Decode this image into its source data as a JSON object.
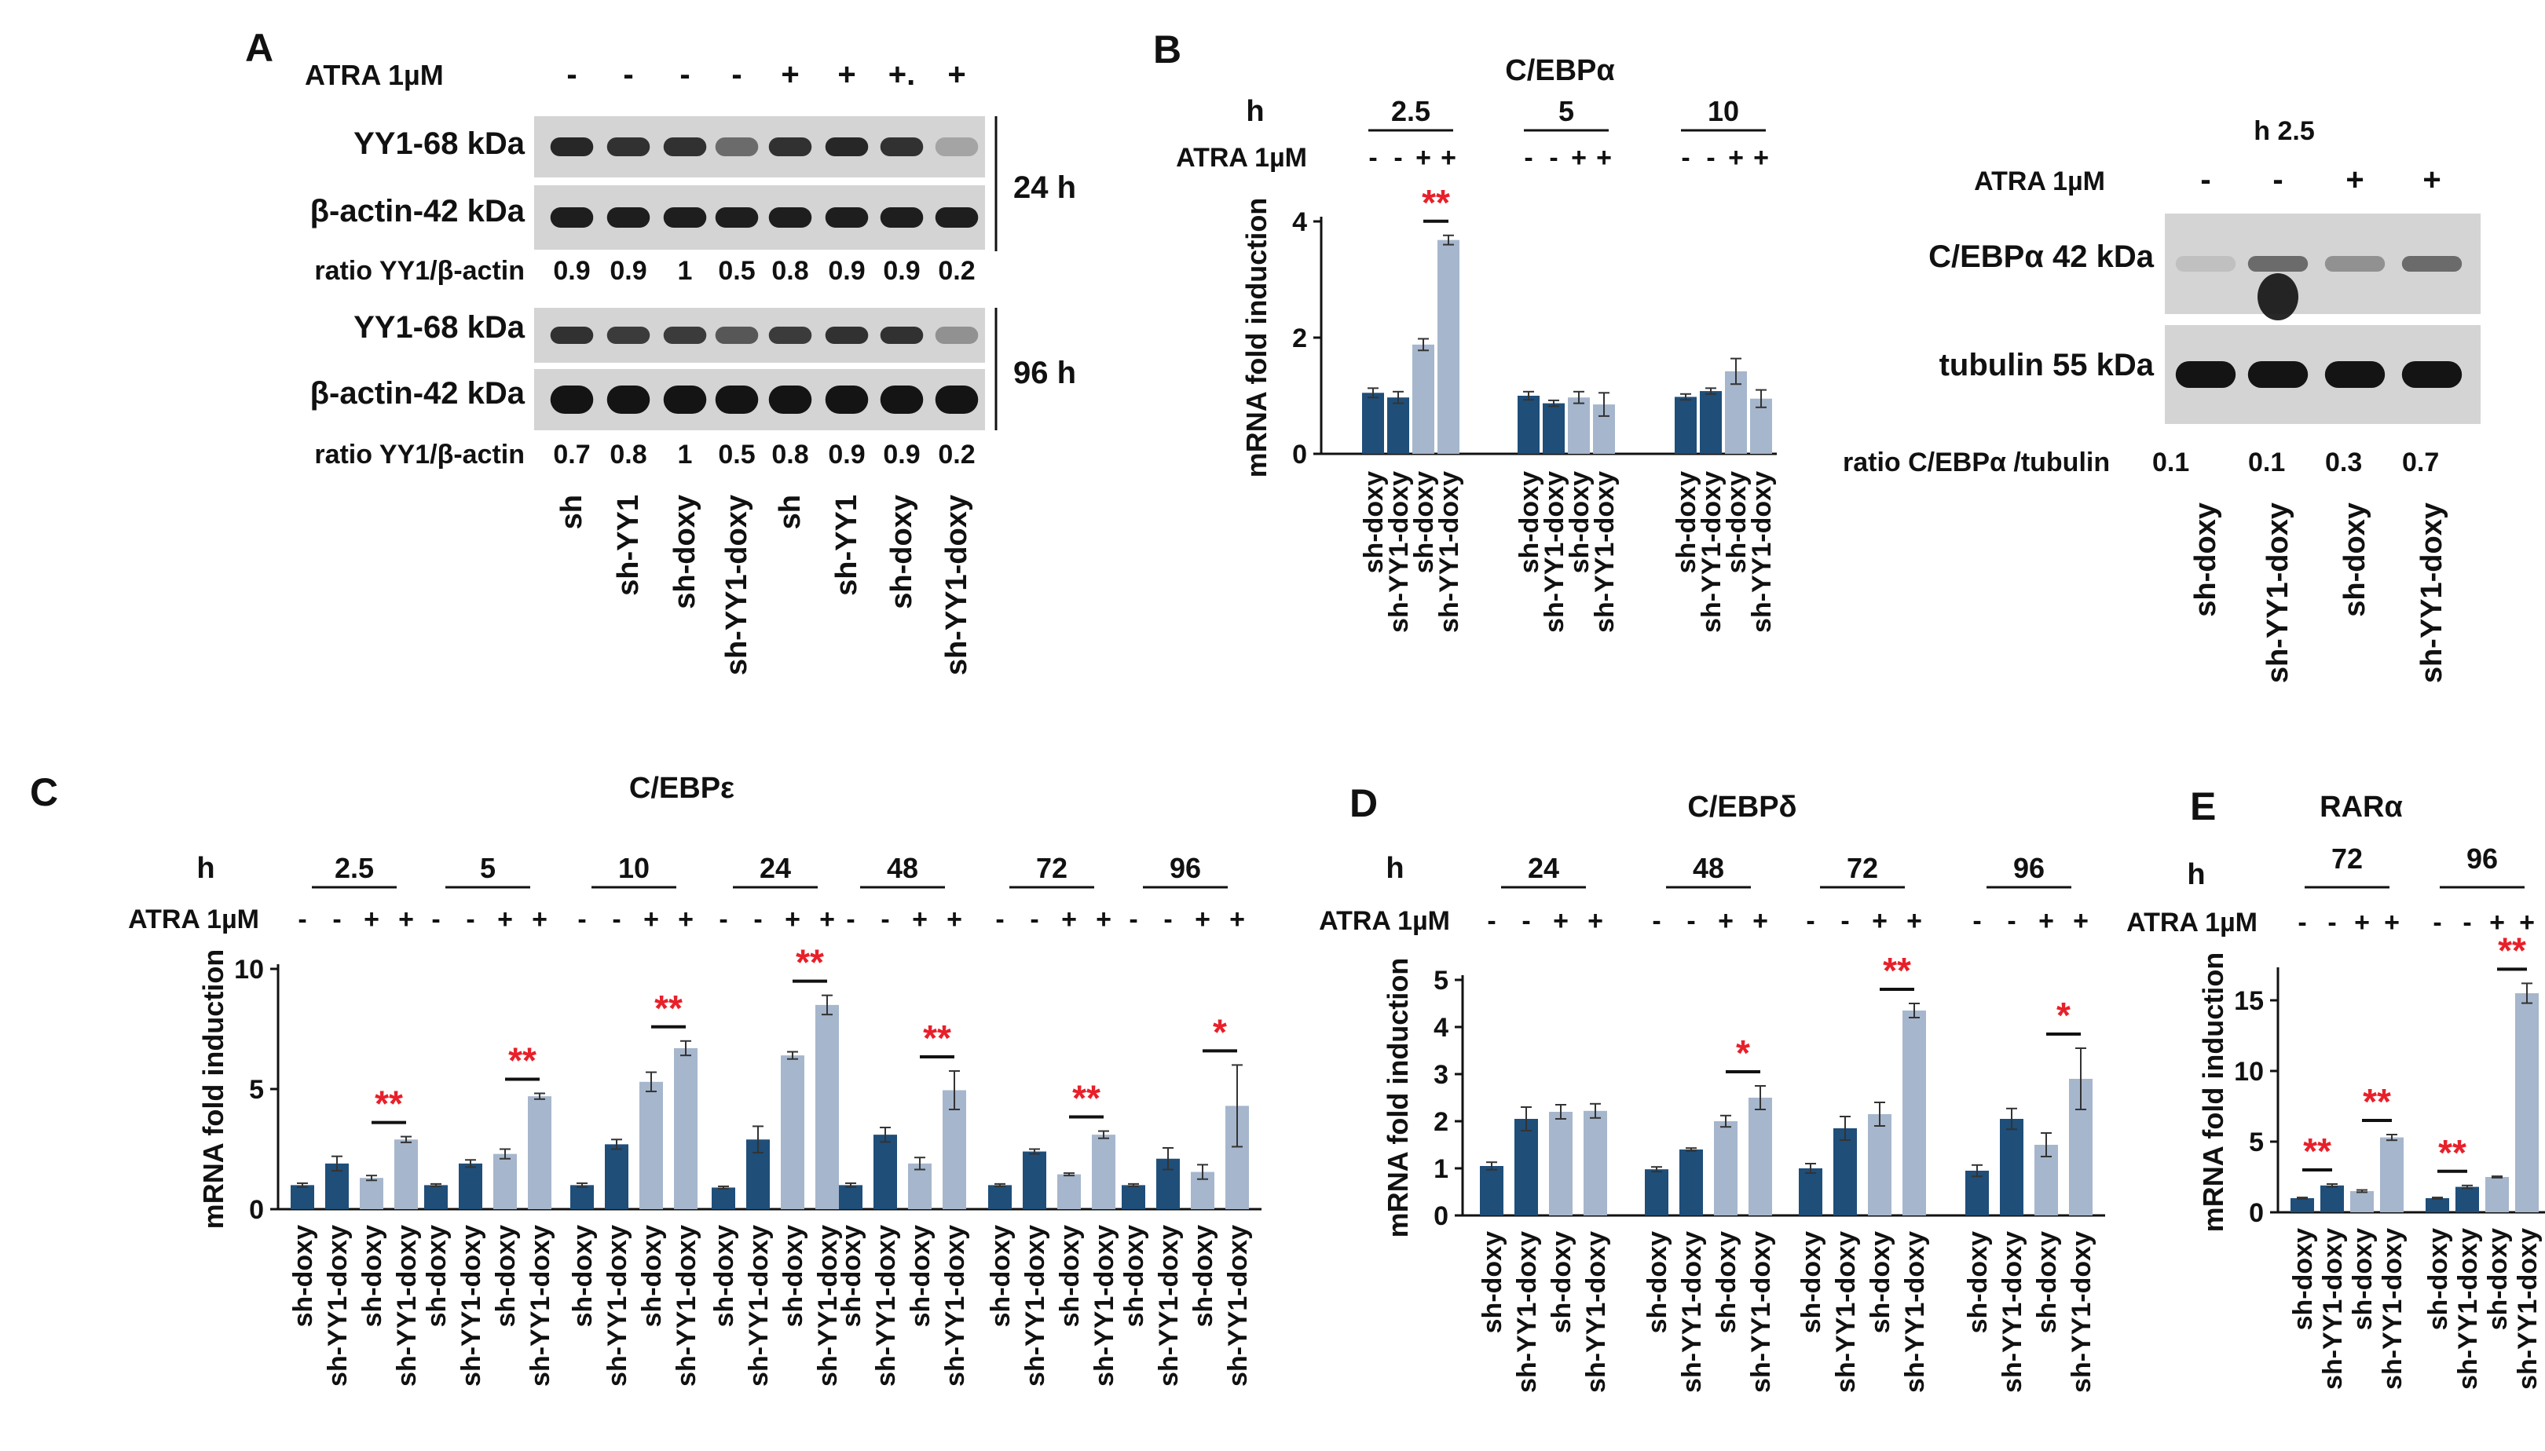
{
  "panels": {
    "A": {
      "letter": "A",
      "atra_label": "ATRA 1µM",
      "atra_signs": [
        "-",
        "-",
        "-",
        "-",
        "+",
        "+",
        "+.",
        "+"
      ],
      "blot_24h": {
        "row1": "YY1-68 kDa",
        "row2": "β-actin-42 kDa",
        "time": "24 h",
        "ratio_label": "ratio YY1/β-actin",
        "ratios": [
          "0.9",
          "0.9",
          "1",
          "0.5",
          "0.8",
          "0.9",
          "0.9",
          "0.2"
        ]
      },
      "blot_96h": {
        "row1": "YY1-68 kDa",
        "row2": "β-actin-42 kDa",
        "time": "96 h",
        "ratio_label": "ratio YY1/β-actin",
        "ratios": [
          "0.7",
          "0.8",
          "1",
          "0.5",
          "0.8",
          "0.9",
          "0.9",
          "0.2"
        ]
      },
      "lanes": [
        "sh",
        "sh-YY1",
        "sh-doxy",
        "sh-YY1-doxy",
        "sh",
        "sh-YY1",
        "sh-doxy",
        "sh-YY1-doxy"
      ]
    },
    "B_blot": {
      "time": "h 2.5",
      "atra_label": "ATRA 1µM",
      "atra_signs": [
        "-",
        "-",
        "+",
        "+"
      ],
      "row1": "C/EBPα 42 kDa",
      "row2": "tubulin 55 kDa",
      "ratio_label": "ratio C/EBPα /tubulin",
      "ratios": [
        "0.1",
        "0.1",
        "0.3",
        "0.7"
      ],
      "lanes": [
        "sh-doxy",
        "sh-YY1-doxy",
        "sh-doxy",
        "sh-YY1-doxy"
      ]
    }
  },
  "chart_data": [
    {
      "panel": "B",
      "type": "bar",
      "title": "C/EBPα",
      "ylabel": "mRNA fold induction",
      "ylim": [
        0,
        4
      ],
      "yticks": [
        0,
        2,
        4
      ],
      "h_label": "h",
      "atra_label": "ATRA 1µM",
      "bar_labels": [
        "sh-doxy",
        "sh-YY1-doxy",
        "sh-doxy",
        "sh-YY1-doxy"
      ],
      "groups": [
        {
          "time": "2.5",
          "values": [
            1.05,
            0.97,
            1.88,
            3.68
          ],
          "errors": [
            0.08,
            0.1,
            0.1,
            0.08
          ],
          "signif": "**"
        },
        {
          "time": "5",
          "values": [
            1.0,
            0.87,
            0.97,
            0.85
          ],
          "errors": [
            0.07,
            0.05,
            0.1,
            0.2
          ],
          "signif": ""
        },
        {
          "time": "10",
          "values": [
            0.98,
            1.08,
            1.42,
            0.95
          ],
          "errors": [
            0.05,
            0.05,
            0.22,
            0.15
          ],
          "signif": ""
        }
      ]
    },
    {
      "panel": "C",
      "type": "bar",
      "title": "C/EBPε",
      "ylabel": "mRNA fold induction",
      "ylim": [
        0,
        10
      ],
      "yticks": [
        0,
        5,
        10
      ],
      "h_label": "h",
      "atra_label": "ATRA 1µM",
      "bar_labels": [
        "sh-doxy",
        "sh-YY1-doxy",
        "sh-doxy",
        "sh-YY1-doxy"
      ],
      "groups": [
        {
          "time": "2.5",
          "values": [
            1.0,
            1.9,
            1.3,
            2.9
          ],
          "errors": [
            0.08,
            0.3,
            0.1,
            0.12
          ],
          "signif": "**"
        },
        {
          "time": "5",
          "values": [
            1.0,
            1.9,
            2.3,
            4.7
          ],
          "errors": [
            0.05,
            0.15,
            0.2,
            0.12
          ],
          "signif": "**"
        },
        {
          "time": "10",
          "values": [
            1.0,
            2.7,
            5.3,
            6.7
          ],
          "errors": [
            0.08,
            0.2,
            0.4,
            0.3
          ],
          "signif": "**"
        },
        {
          "time": "24",
          "values": [
            0.9,
            2.9,
            6.4,
            8.5
          ],
          "errors": [
            0.05,
            0.55,
            0.15,
            0.4
          ],
          "signif": "**"
        },
        {
          "time": "48",
          "values": [
            1.0,
            3.1,
            1.9,
            4.95
          ],
          "errors": [
            0.08,
            0.3,
            0.25,
            0.8
          ],
          "signif": "**"
        },
        {
          "time": "72",
          "values": [
            1.0,
            2.4,
            1.45,
            3.1
          ],
          "errors": [
            0.05,
            0.1,
            0.05,
            0.15
          ],
          "signif": "**"
        },
        {
          "time": "96",
          "values": [
            1.0,
            2.1,
            1.55,
            4.3
          ],
          "errors": [
            0.05,
            0.45,
            0.3,
            1.7
          ],
          "signif": "*"
        }
      ]
    },
    {
      "panel": "D",
      "type": "bar",
      "title": "C/EBPδ",
      "ylabel": "mRNA fold induction",
      "ylim": [
        0,
        5
      ],
      "yticks": [
        0,
        1,
        2,
        3,
        4,
        5
      ],
      "h_label": "h",
      "atra_label": "ATRA 1µM",
      "bar_labels": [
        "sh-doxy",
        "sh-YY1-doxy",
        "sh-doxy",
        "sh-YY1-doxy"
      ],
      "groups": [
        {
          "time": "24",
          "values": [
            1.05,
            2.05,
            2.2,
            2.22
          ],
          "errors": [
            0.08,
            0.25,
            0.15,
            0.15
          ],
          "signif": ""
        },
        {
          "time": "48",
          "values": [
            0.98,
            1.4,
            2.0,
            2.5
          ],
          "errors": [
            0.05,
            0.03,
            0.12,
            0.25
          ],
          "signif": "*"
        },
        {
          "time": "72",
          "values": [
            1.0,
            1.85,
            2.15,
            4.35
          ],
          "errors": [
            0.1,
            0.25,
            0.25,
            0.15
          ],
          "signif": "**"
        },
        {
          "time": "96",
          "values": [
            0.95,
            2.05,
            1.5,
            2.9
          ],
          "errors": [
            0.12,
            0.22,
            0.25,
            0.65
          ],
          "signif": "*"
        }
      ]
    },
    {
      "panel": "E",
      "type": "bar",
      "title": "RARα",
      "ylabel": "mRNA fold induction",
      "ylim": [
        0,
        17
      ],
      "yticks": [
        0,
        5,
        10,
        15
      ],
      "h_label": "h",
      "atra_label": "ATRA 1µM",
      "bar_labels": [
        "sh-doxy",
        "sh-YY1-doxy",
        "sh-doxy",
        "sh-YY1-doxy"
      ],
      "groups": [
        {
          "time": "72",
          "values": [
            1.0,
            1.9,
            1.5,
            5.3
          ],
          "errors": [
            0.05,
            0.1,
            0.08,
            0.2
          ],
          "signif_pairs": [
            "**",
            "**"
          ]
        },
        {
          "time": "96",
          "values": [
            1.0,
            1.8,
            2.5,
            15.5
          ],
          "errors": [
            0.05,
            0.1,
            0.05,
            0.7
          ],
          "signif_pairs": [
            "**",
            "**"
          ]
        }
      ]
    }
  ],
  "colors": {
    "control": "#1f4e79",
    "atra": "#a6b6cc",
    "signif": "#e8202a",
    "text": "#111111"
  }
}
